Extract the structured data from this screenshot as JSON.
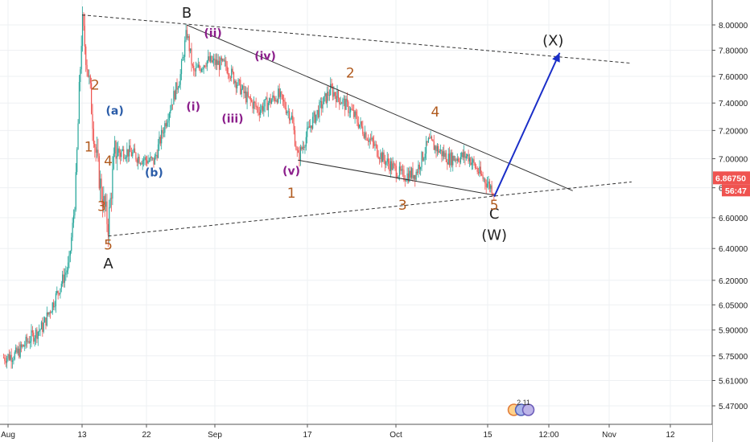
{
  "chart_data": {
    "type": "candlestick",
    "title": "",
    "xlabel": "",
    "ylabel": "",
    "x_ticks": [
      "Aug",
      "13",
      "22",
      "Sep",
      "17",
      "Oct",
      "15",
      "12:00",
      "Nov",
      "12"
    ],
    "y_ticks": [
      "8.00000",
      "7.80000",
      "7.60000",
      "7.40000",
      "7.20000",
      "7.00000",
      "6.80000",
      "6.60000",
      "6.40000",
      "6.20000",
      "6.05000",
      "5.90000",
      "5.75000",
      "5.61000",
      "5.47000"
    ],
    "ylim": [
      5.42,
      8.17
    ],
    "last_price": "6.86750",
    "countdown": "56:47",
    "price_path": [
      {
        "t": "Aug 1",
        "v": 5.74
      },
      {
        "t": "Aug 3",
        "v": 5.76
      },
      {
        "t": "Aug 5",
        "v": 5.85
      },
      {
        "t": "Aug 7",
        "v": 5.92
      },
      {
        "t": "Aug 9",
        "v": 6.1
      },
      {
        "t": "Aug 11",
        "v": 6.3
      },
      {
        "t": "Aug 12",
        "v": 6.75
      },
      {
        "t": "Aug 13",
        "v": 8.02
      },
      {
        "t": "Aug 14",
        "v": 7.6
      },
      {
        "t": "Aug 15",
        "v": 7.08
      },
      {
        "t": "Aug 16",
        "v": 6.75
      },
      {
        "t": "Aug 17",
        "v": 6.55
      },
      {
        "t": "Aug 18",
        "v": 7.05
      },
      {
        "t": "Aug 20",
        "v": 7.05
      },
      {
        "t": "Aug 22",
        "v": 7.0
      },
      {
        "t": "Aug 24",
        "v": 6.98
      },
      {
        "t": "Aug 26",
        "v": 7.3
      },
      {
        "t": "Aug 28",
        "v": 7.6
      },
      {
        "t": "Aug 29",
        "v": 7.95
      },
      {
        "t": "Aug 30",
        "v": 7.62
      },
      {
        "t": "Sep 1",
        "v": 7.72
      },
      {
        "t": "Sep 4",
        "v": 7.68
      },
      {
        "t": "Sep 7",
        "v": 7.45
      },
      {
        "t": "Sep 9",
        "v": 7.35
      },
      {
        "t": "Sep 12",
        "v": 7.46
      },
      {
        "t": "Sep 14",
        "v": 7.3
      },
      {
        "t": "Sep 15",
        "v": 7.0
      },
      {
        "t": "Sep 17",
        "v": 7.25
      },
      {
        "t": "Sep 20",
        "v": 7.5
      },
      {
        "t": "Sep 23",
        "v": 7.35
      },
      {
        "t": "Sep 25",
        "v": 7.2
      },
      {
        "t": "Sep 28",
        "v": 7.0
      },
      {
        "t": "Oct 1",
        "v": 6.88
      },
      {
        "t": "Oct 3",
        "v": 6.9
      },
      {
        "t": "Oct 5",
        "v": 7.12
      },
      {
        "t": "Oct 8",
        "v": 7.0
      },
      {
        "t": "Oct 11",
        "v": 7.02
      },
      {
        "t": "Oct 13",
        "v": 6.88
      },
      {
        "t": "Oct 15",
        "v": 6.78
      }
    ],
    "trend_lines": [
      {
        "style": "dashed",
        "from": {
          "t": "Aug 13",
          "v": 8.08
        },
        "to": {
          "t": "Nov 5",
          "v": 7.7
        }
      },
      {
        "style": "dashed",
        "from": {
          "t": "Aug 17",
          "v": 6.48
        },
        "to": {
          "t": "Nov 5",
          "v": 6.84
        }
      },
      {
        "style": "solid",
        "from": {
          "t": "Aug 29",
          "v": 8.0
        },
        "to": {
          "t": "Oct 27",
          "v": 6.78
        }
      },
      {
        "style": "solid",
        "from": {
          "t": "Sep 15",
          "v": 6.99
        },
        "to": {
          "t": "Oct 15",
          "v": 6.75
        }
      }
    ],
    "projection": {
      "from": {
        "t": "Oct 15",
        "v": 6.74
      },
      "to": {
        "t": "Oct 25",
        "v": 7.78
      },
      "color": "#1a2ec8"
    },
    "annotations": [
      {
        "text": "B",
        "color": "#222222",
        "t": "Aug 29",
        "v": 8.09
      },
      {
        "text": "A",
        "color": "#222222",
        "t": "Aug 17",
        "v": 6.3
      },
      {
        "text": "C",
        "color": "#222222",
        "t": "Oct 15",
        "v": 6.62
      },
      {
        "text": "(W)",
        "color": "#222222",
        "t": "Oct 15",
        "v": 6.48
      },
      {
        "text": "(X)",
        "color": "#222222",
        "t": "Oct 24",
        "v": 7.87
      },
      {
        "text": "1",
        "color": "#b05a1e",
        "t": "Aug 14",
        "v": 7.08
      },
      {
        "text": "2",
        "color": "#b05a1e",
        "t": "Aug 15",
        "v": 7.53
      },
      {
        "text": "3",
        "color": "#b05a1e",
        "t": "Aug 16",
        "v": 6.67
      },
      {
        "text": "4",
        "color": "#b05a1e",
        "t": "Aug 17",
        "v": 6.98
      },
      {
        "text": "5",
        "color": "#b05a1e",
        "t": "Aug 17",
        "v": 6.42
      },
      {
        "text": "(a)",
        "color": "#2a5ca8",
        "t": "Aug 18",
        "v": 7.34
      },
      {
        "text": "(b)",
        "color": "#2a5ca8",
        "t": "Aug 24",
        "v": 6.9
      },
      {
        "text": "(i)",
        "color": "#8b1e8b",
        "t": "Aug 30",
        "v": 7.37
      },
      {
        "text": "(ii)",
        "color": "#8b1e8b",
        "t": "Sep 2",
        "v": 7.93
      },
      {
        "text": "(iii)",
        "color": "#8b1e8b",
        "t": "Sep 5",
        "v": 7.28
      },
      {
        "text": "(iv)",
        "color": "#8b1e8b",
        "t": "Sep 10",
        "v": 7.75
      },
      {
        "text": "(v)",
        "color": "#8b1e8b",
        "t": "Sep 14",
        "v": 6.91
      },
      {
        "text": "1",
        "color": "#b05a1e",
        "t": "Sep 14",
        "v": 6.76
      },
      {
        "text": "2",
        "color": "#b05a1e",
        "t": "Sep 23",
        "v": 7.62
      },
      {
        "text": "3",
        "color": "#b05a1e",
        "t": "Oct 1",
        "v": 6.68
      },
      {
        "text": "4",
        "color": "#b05a1e",
        "t": "Oct 6",
        "v": 7.33
      },
      {
        "text": "5",
        "color": "#b05a1e",
        "t": "Oct 15",
        "v": 6.68
      }
    ],
    "colors": {
      "up": "#26a69a",
      "down": "#ef5350",
      "last_price_bg": "#ef5350",
      "countdown_bg": "#ef5350"
    },
    "grid": true
  },
  "watermark": {
    "icon": "tradingview-logo",
    "text": "2 11"
  }
}
